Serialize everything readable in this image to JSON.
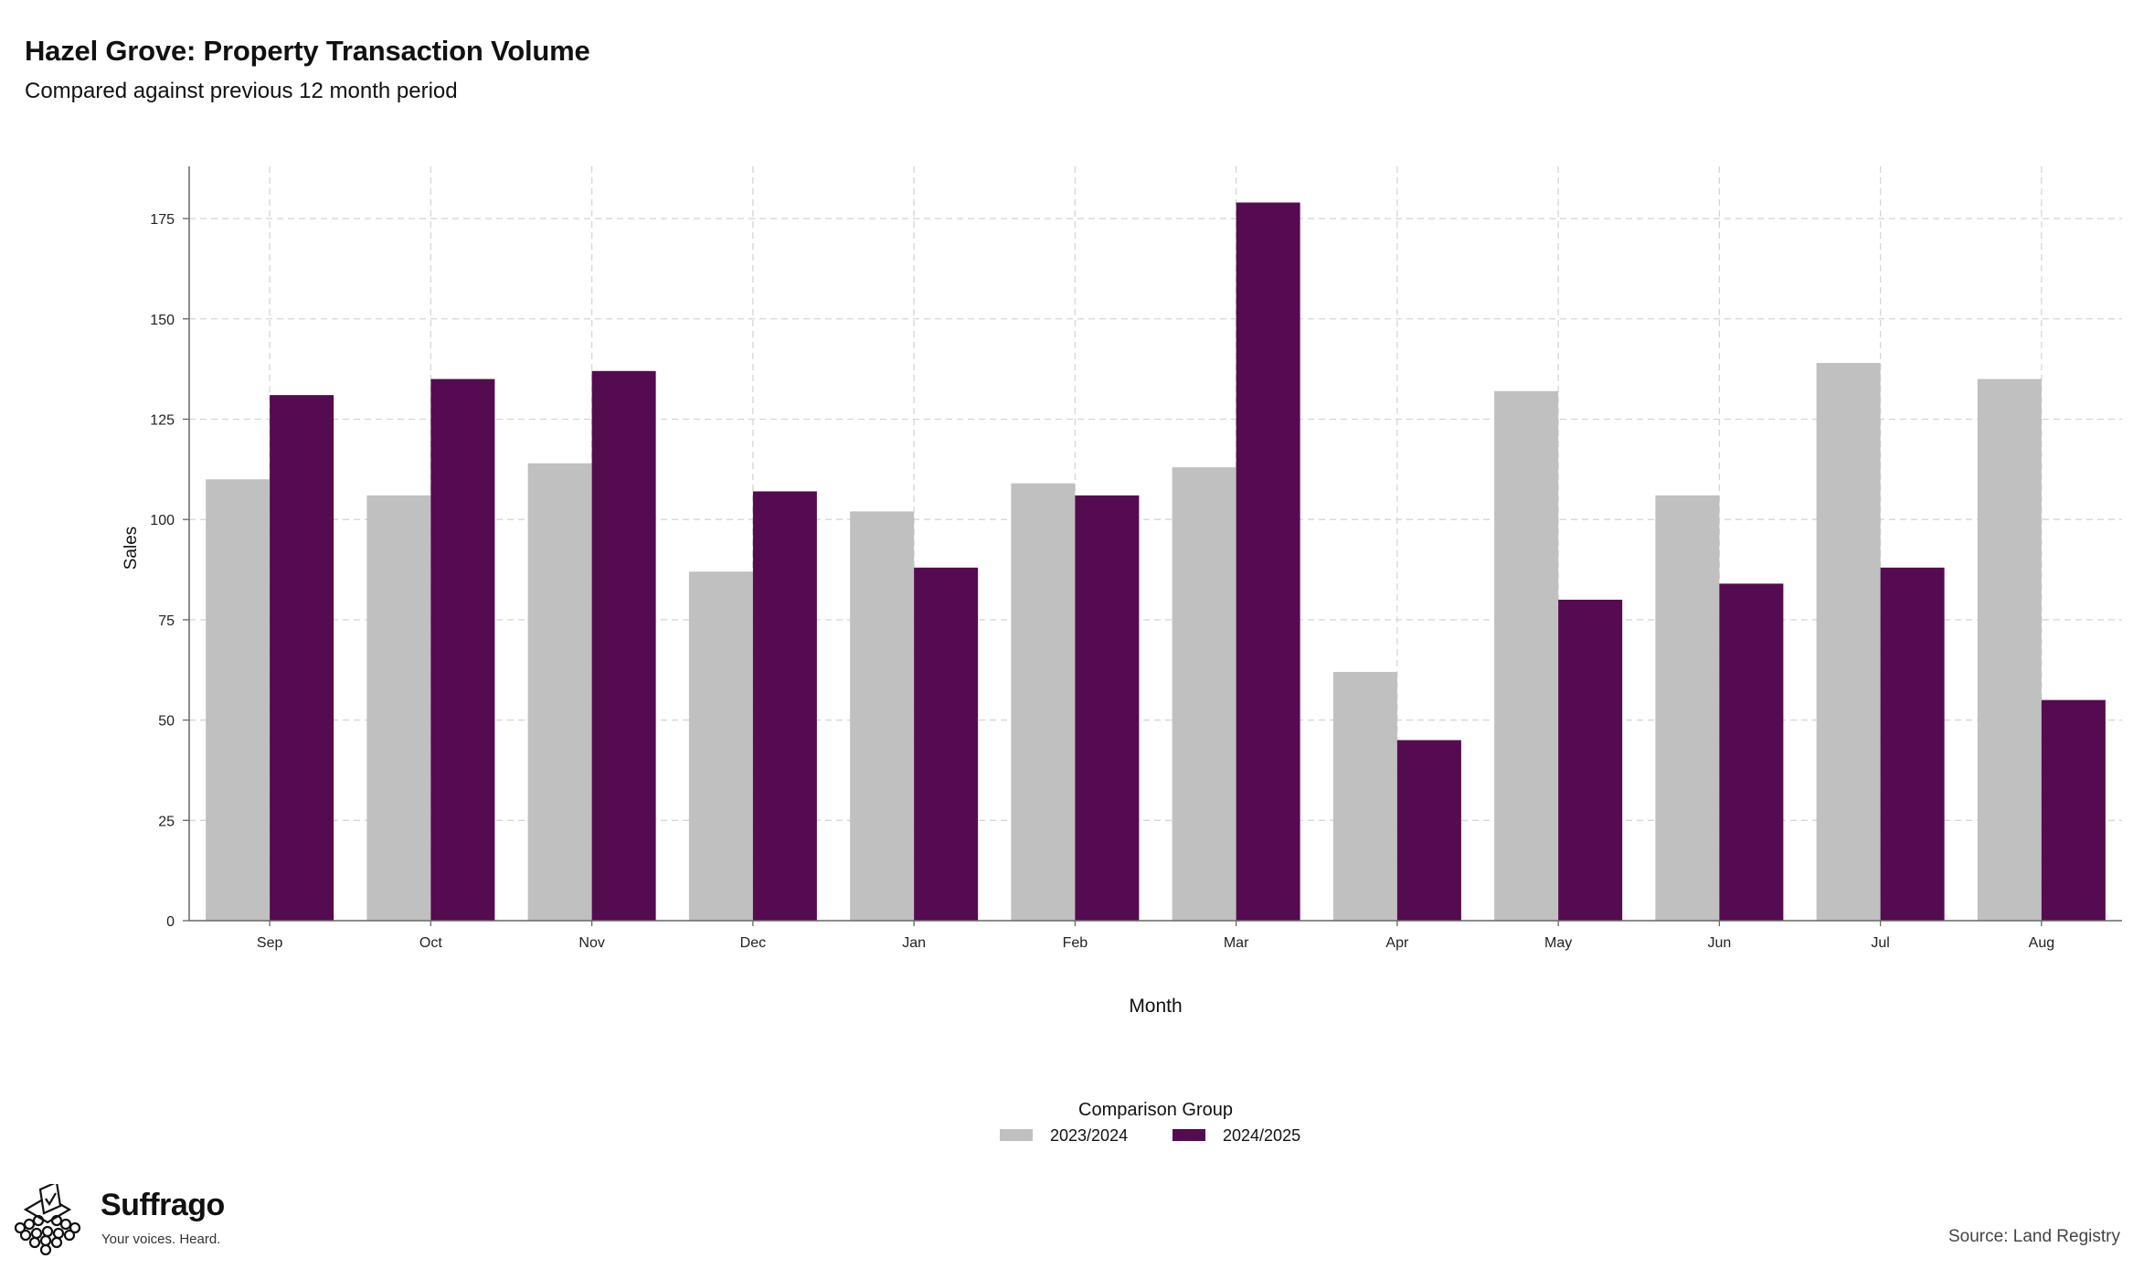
{
  "header": {
    "title": "Hazel Grove: Property Transaction Volume",
    "subtitle": "Compared against previous 12 month period"
  },
  "footer": {
    "brand_name": "Suffrago",
    "brand_tagline": "Your voices. Heard.",
    "source": "Source: Land Registry"
  },
  "chart_data": {
    "type": "bar",
    "categories": [
      "Sep",
      "Oct",
      "Nov",
      "Dec",
      "Jan",
      "Feb",
      "Mar",
      "Apr",
      "May",
      "Jun",
      "Jul",
      "Aug"
    ],
    "series": [
      {
        "name": "2023/2024",
        "color": "#c0c0c0",
        "values": [
          110,
          106,
          114,
          87,
          102,
          109,
          113,
          62,
          132,
          106,
          139,
          135
        ]
      },
      {
        "name": "2024/2025",
        "color": "#540b50",
        "values": [
          131,
          135,
          137,
          107,
          88,
          106,
          179,
          45,
          80,
          84,
          88,
          55
        ]
      }
    ],
    "xlabel": "Month",
    "ylabel": "Sales",
    "ylim": [
      0,
      188
    ],
    "yticks": [
      0,
      25,
      50,
      75,
      100,
      125,
      150,
      175
    ],
    "grid": true,
    "legend": {
      "title": "Comparison Group",
      "position": "bottom-center"
    }
  }
}
